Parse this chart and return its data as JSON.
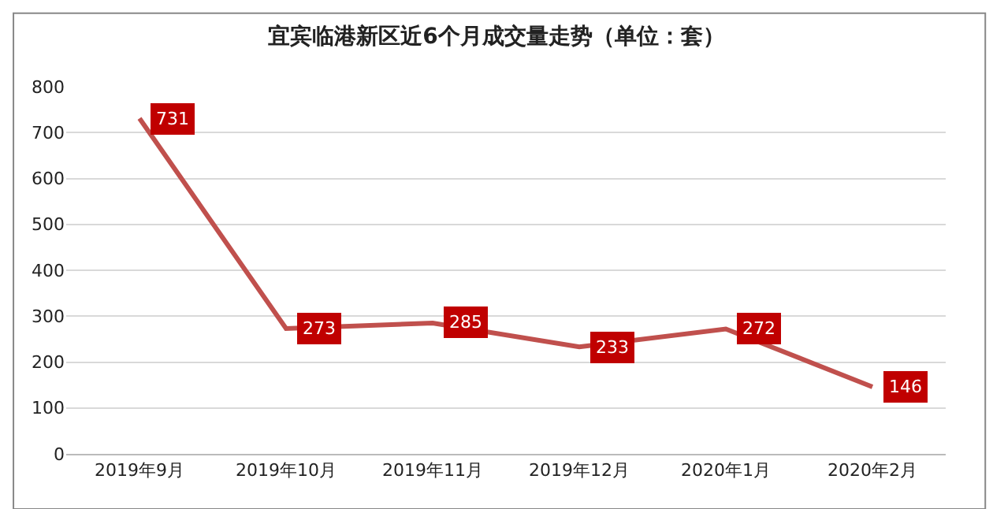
{
  "chart_data": {
    "type": "line",
    "title": "宜宾临港新区近6个月成交量走势（单位：套）",
    "categories": [
      "2019年9月",
      "2019年10月",
      "2019年11月",
      "2019年12月",
      "2020年1月",
      "2020年2月"
    ],
    "series": [
      {
        "color": "#c0504d",
        "values": [
          731,
          273,
          285,
          233,
          272,
          146
        ]
      }
    ],
    "ylim": [
      0,
      800
    ],
    "yticks": [
      0,
      100,
      200,
      300,
      400,
      500,
      600,
      700,
      800
    ],
    "grid": "y",
    "marker": "none",
    "line_style": "solid",
    "data_labels": true
  }
}
